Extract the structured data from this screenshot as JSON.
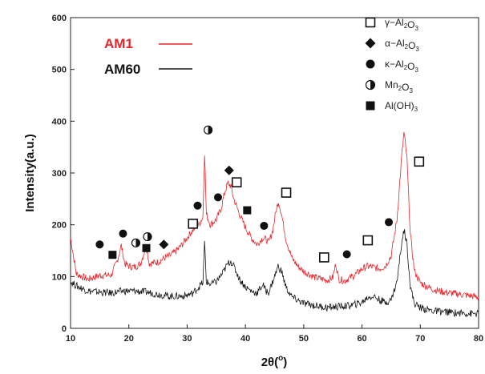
{
  "chart_data": {
    "type": "line",
    "xlabel_base": "2θ(",
    "xlabel_unit": "o",
    "xlabel_close": ")",
    "ylabel": "Intensity(a.u.)",
    "xlim": [
      10,
      80
    ],
    "ylim": [
      0,
      600
    ],
    "xticks": [
      10,
      20,
      30,
      40,
      50,
      60,
      70,
      80
    ],
    "yticks": [
      0,
      100,
      200,
      300,
      400,
      500,
      600
    ],
    "series": [
      {
        "name": "AM1",
        "color": "#e8262b",
        "points": [
          [
            10,
            175
          ],
          [
            11,
            105
          ],
          [
            13,
            95
          ],
          [
            15,
            102
          ],
          [
            17,
            103
          ],
          [
            18,
            130
          ],
          [
            18.7,
            160
          ],
          [
            19.3,
            125
          ],
          [
            20,
            120
          ],
          [
            21,
            118
          ],
          [
            22,
            125
          ],
          [
            23,
            160
          ],
          [
            23.5,
            125
          ],
          [
            25,
            128
          ],
          [
            26,
            135
          ],
          [
            27,
            140
          ],
          [
            28,
            148
          ],
          [
            29,
            160
          ],
          [
            30,
            175
          ],
          [
            31,
            190
          ],
          [
            32,
            200
          ],
          [
            32.7,
            215
          ],
          [
            33.0,
            340
          ],
          [
            33.3,
            220
          ],
          [
            34,
            200
          ],
          [
            35,
            210
          ],
          [
            35.8,
            230
          ],
          [
            36.5,
            265
          ],
          [
            37,
            280
          ],
          [
            37.5,
            275
          ],
          [
            38,
            250
          ],
          [
            39,
            220
          ],
          [
            40,
            195
          ],
          [
            41,
            175
          ],
          [
            42,
            162
          ],
          [
            43,
            175
          ],
          [
            43.7,
            170
          ],
          [
            44,
            165
          ],
          [
            44.7,
            190
          ],
          [
            45.3,
            230
          ],
          [
            45.7,
            245
          ],
          [
            46.2,
            220
          ],
          [
            47,
            170
          ],
          [
            48,
            135
          ],
          [
            49,
            120
          ],
          [
            50,
            110
          ],
          [
            52,
            98
          ],
          [
            54,
            93
          ],
          [
            55,
            98
          ],
          [
            55.5,
            125
          ],
          [
            56,
            95
          ],
          [
            57,
            92
          ],
          [
            58,
            98
          ],
          [
            59,
            105
          ],
          [
            60,
            115
          ],
          [
            61,
            120
          ],
          [
            62,
            118
          ],
          [
            63,
            115
          ],
          [
            64,
            120
          ],
          [
            65,
            140
          ],
          [
            66,
            210
          ],
          [
            66.8,
            330
          ],
          [
            67.2,
            378
          ],
          [
            67.7,
            330
          ],
          [
            68.3,
            180
          ],
          [
            69,
            110
          ],
          [
            70,
            88
          ],
          [
            72,
            76
          ],
          [
            74,
            70
          ],
          [
            76,
            67
          ],
          [
            78,
            64
          ],
          [
            80,
            60
          ]
        ]
      },
      {
        "name": "AM60",
        "color": "#151515",
        "points": [
          [
            10,
            90
          ],
          [
            11,
            82
          ],
          [
            13,
            72
          ],
          [
            15,
            70
          ],
          [
            17,
            68
          ],
          [
            19,
            72
          ],
          [
            21,
            72
          ],
          [
            23,
            70
          ],
          [
            25,
            66
          ],
          [
            27,
            62
          ],
          [
            29,
            62
          ],
          [
            30,
            64
          ],
          [
            31,
            68
          ],
          [
            32,
            80
          ],
          [
            32.7,
            88
          ],
          [
            33.0,
            165
          ],
          [
            33.3,
            90
          ],
          [
            34,
            85
          ],
          [
            35,
            90
          ],
          [
            36,
            105
          ],
          [
            37,
            125
          ],
          [
            37.5,
            130
          ],
          [
            38,
            120
          ],
          [
            39,
            95
          ],
          [
            40,
            80
          ],
          [
            41,
            72
          ],
          [
            42,
            68
          ],
          [
            43,
            85
          ],
          [
            43.5,
            72
          ],
          [
            44,
            70
          ],
          [
            45,
            100
          ],
          [
            45.6,
            120
          ],
          [
            46.2,
            110
          ],
          [
            47,
            78
          ],
          [
            48,
            60
          ],
          [
            50,
            48
          ],
          [
            52,
            44
          ],
          [
            54,
            40
          ],
          [
            56,
            42
          ],
          [
            58,
            44
          ],
          [
            60,
            50
          ],
          [
            61,
            60
          ],
          [
            62,
            62
          ],
          [
            63,
            55
          ],
          [
            64,
            50
          ],
          [
            65,
            55
          ],
          [
            66,
            90
          ],
          [
            66.8,
            165
          ],
          [
            67.2,
            190
          ],
          [
            67.7,
            165
          ],
          [
            68.3,
            80
          ],
          [
            69,
            48
          ],
          [
            70,
            40
          ],
          [
            72,
            34
          ],
          [
            74,
            32
          ],
          [
            76,
            30
          ],
          [
            78,
            29
          ],
          [
            80,
            28
          ]
        ]
      }
    ],
    "legend": {
      "position": "top-right",
      "entries": [
        {
          "symbol": "open-square",
          "label": "γ−Al",
          "sub1": "2",
          "mid": "O",
          "sub2": "3"
        },
        {
          "symbol": "filled-diamond",
          "label": "α−Al",
          "sub1": "2",
          "mid": "O",
          "sub2": "3"
        },
        {
          "symbol": "filled-circle",
          "label": "κ−Al",
          "sub1": "2",
          "mid": "O",
          "sub2": "3"
        },
        {
          "symbol": "half-circle",
          "label": "Mn",
          "sub1": "2",
          "mid": "O",
          "sub2": "3"
        },
        {
          "symbol": "filled-square",
          "label": "Al(OH)",
          "sub1": "3",
          "mid": "",
          "sub2": ""
        }
      ]
    },
    "markers": [
      {
        "symbol": "filled-circle",
        "x": 15,
        "y": 162
      },
      {
        "symbol": "filled-square",
        "x": 17.2,
        "y": 142
      },
      {
        "symbol": "filled-circle",
        "x": 19,
        "y": 183
      },
      {
        "symbol": "half-circle",
        "x": 21.2,
        "y": 165
      },
      {
        "symbol": "half-circle",
        "x": 23.2,
        "y": 177
      },
      {
        "symbol": "filled-square",
        "x": 23,
        "y": 155
      },
      {
        "symbol": "filled-diamond",
        "x": 26,
        "y": 162
      },
      {
        "symbol": "open-square",
        "x": 31,
        "y": 202
      },
      {
        "symbol": "filled-circle",
        "x": 31.8,
        "y": 237
      },
      {
        "symbol": "half-circle",
        "x": 33.6,
        "y": 383
      },
      {
        "symbol": "filled-circle",
        "x": 35.3,
        "y": 253
      },
      {
        "symbol": "filled-diamond",
        "x": 37.2,
        "y": 305
      },
      {
        "symbol": "open-square",
        "x": 38.5,
        "y": 282
      },
      {
        "symbol": "filled-square",
        "x": 40.3,
        "y": 228
      },
      {
        "symbol": "filled-circle",
        "x": 43.2,
        "y": 198
      },
      {
        "symbol": "open-square",
        "x": 47,
        "y": 262
      },
      {
        "symbol": "open-square",
        "x": 53.5,
        "y": 137
      },
      {
        "symbol": "filled-circle",
        "x": 57.4,
        "y": 143
      },
      {
        "symbol": "open-square",
        "x": 61,
        "y": 170
      },
      {
        "symbol": "filled-circle",
        "x": 64.6,
        "y": 205
      },
      {
        "symbol": "open-square",
        "x": 69.8,
        "y": 322
      }
    ]
  }
}
